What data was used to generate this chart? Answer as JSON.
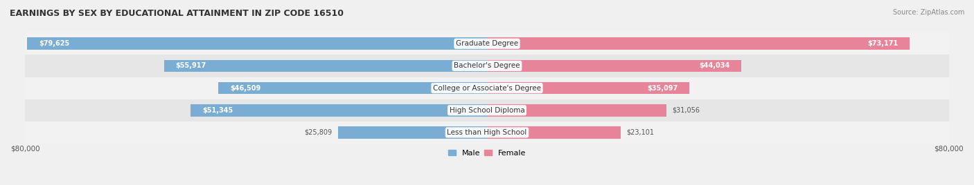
{
  "title": "EARNINGS BY SEX BY EDUCATIONAL ATTAINMENT IN ZIP CODE 16510",
  "source": "Source: ZipAtlas.com",
  "categories": [
    "Less than High School",
    "High School Diploma",
    "College or Associate's Degree",
    "Bachelor's Degree",
    "Graduate Degree"
  ],
  "male_values": [
    25809,
    51345,
    46509,
    55917,
    79625
  ],
  "female_values": [
    23101,
    31056,
    35097,
    44034,
    73171
  ],
  "max_value": 80000,
  "male_color": "#7aadd4",
  "female_color": "#e8849a",
  "bar_bg_color": "#e8e8e8",
  "row_bg_colors": [
    "#f5f5f5",
    "#ebebeb"
  ],
  "bar_height": 0.55,
  "xlabel_left": "$80,000",
  "xlabel_right": "$80,000"
}
